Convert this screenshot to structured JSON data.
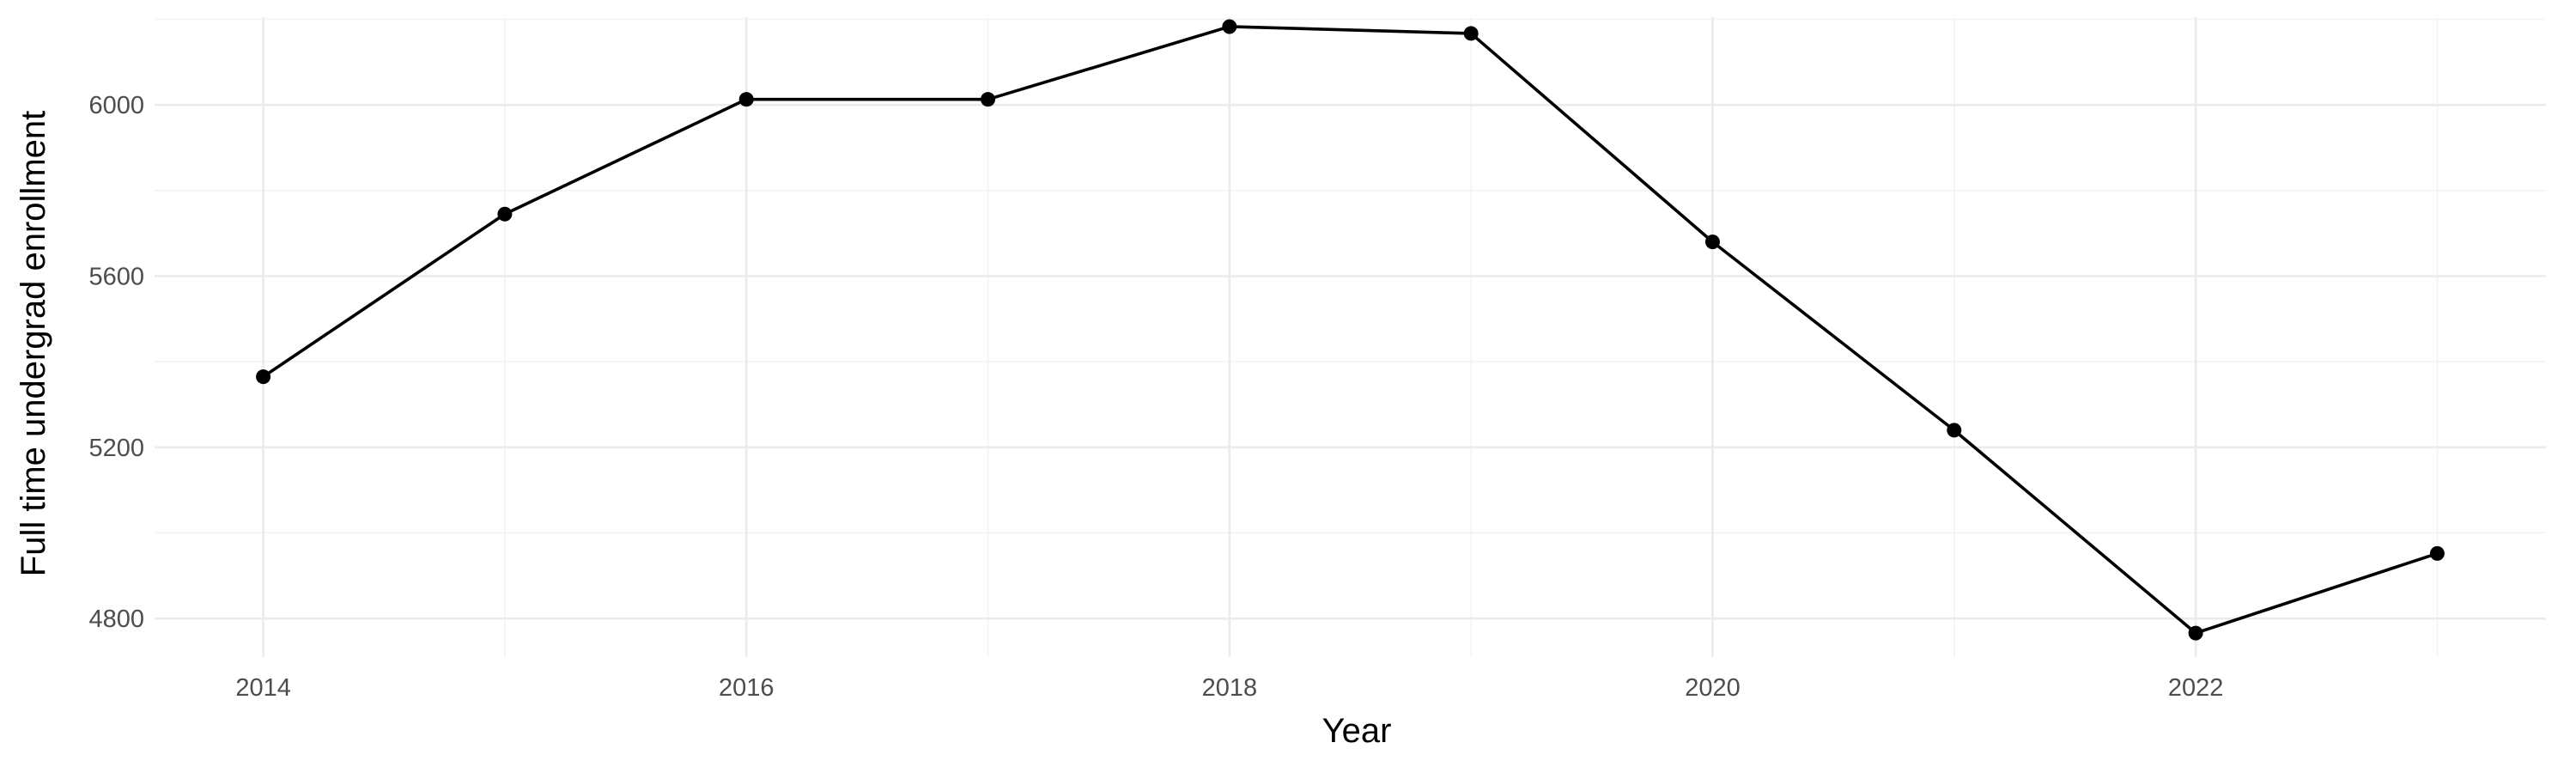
{
  "chart_data": {
    "type": "line",
    "title": "",
    "xlabel": "Year",
    "ylabel": "Full time undergrad enrollment",
    "x": [
      2014,
      2015,
      2016,
      2017,
      2018,
      2019,
      2020,
      2021,
      2022,
      2023
    ],
    "series": [
      {
        "values": [
          5365,
          5745,
          6013,
          6013,
          6183,
          6167,
          5680,
          5240,
          4766,
          4952
        ]
      }
    ],
    "xlim": [
      2013.55,
      2023.45
    ],
    "ylim": [
      4710,
      6205
    ],
    "x_ticks": [
      2014,
      2016,
      2018,
      2020,
      2022
    ],
    "x_tick_labels": [
      "2014",
      "2016",
      "2018",
      "2020",
      "2022"
    ],
    "y_ticks": [
      4800,
      5200,
      5600,
      6000
    ],
    "y_tick_labels": [
      "4800",
      "5200",
      "5600",
      "6000"
    ],
    "grid": true,
    "legend": "none",
    "colors": {
      "line": "#000000",
      "point": "#000000",
      "grid_major": "#ebebeb",
      "grid_minor": "#f3f3f3"
    }
  }
}
